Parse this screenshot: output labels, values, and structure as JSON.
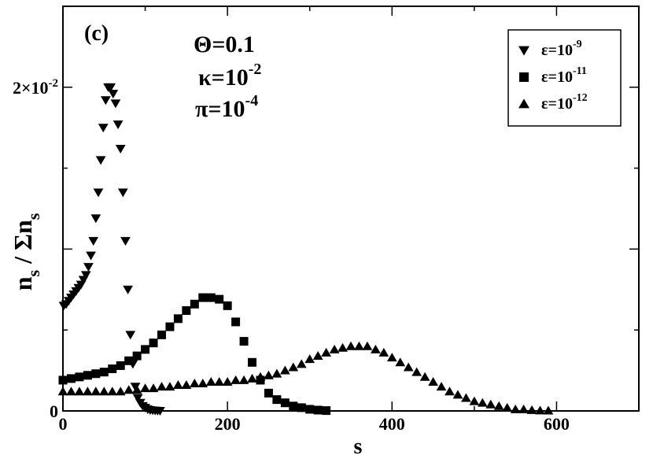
{
  "chart_data": {
    "type": "scatter",
    "panel_label": "(c)",
    "parameters": [
      {
        "symbol": "Θ",
        "base": "=0.1",
        "sub": "",
        "sup": ""
      },
      {
        "symbol": "κ",
        "base": "=10",
        "sub": "",
        "sup": "-2"
      },
      {
        "symbol": "π",
        "base": "=10",
        "sub": "",
        "sup": "-4"
      }
    ],
    "xlabel": "s",
    "ylabel": {
      "main": "n",
      "sub": "s",
      "mid": " / Σn",
      "sub2": "s"
    },
    "xlim": [
      0,
      700
    ],
    "ylim": [
      0,
      0.025
    ],
    "x_ticks": [
      {
        "value": 0,
        "label": "0"
      },
      {
        "value": 200,
        "label": "200"
      },
      {
        "value": 400,
        "label": "400"
      },
      {
        "value": 600,
        "label": "600"
      }
    ],
    "y_ticks": [
      {
        "value": 0,
        "label": "0"
      },
      {
        "value": 0.02,
        "label": "2×10",
        "sup": "-2"
      }
    ],
    "legend_position": "top-right",
    "series": [
      {
        "name": "ε=10",
        "name_sup": "-9",
        "marker": "triangle-down",
        "points": [
          [
            1,
            0.0065
          ],
          [
            4,
            0.0066
          ],
          [
            7,
            0.0068
          ],
          [
            10,
            0.007
          ],
          [
            13,
            0.0072
          ],
          [
            16,
            0.0074
          ],
          [
            19,
            0.0076
          ],
          [
            22,
            0.0078
          ],
          [
            25,
            0.0081
          ],
          [
            28,
            0.0084
          ],
          [
            31,
            0.0089
          ],
          [
            34,
            0.0096
          ],
          [
            37,
            0.0105
          ],
          [
            40,
            0.0119
          ],
          [
            43,
            0.0135
          ],
          [
            46,
            0.0155
          ],
          [
            49,
            0.0175
          ],
          [
            52,
            0.0192
          ],
          [
            55,
            0.02
          ],
          [
            58,
            0.02
          ],
          [
            61,
            0.0196
          ],
          [
            64,
            0.019
          ],
          [
            67,
            0.0177
          ],
          [
            70,
            0.0162
          ],
          [
            73,
            0.0135
          ],
          [
            76,
            0.0105
          ],
          [
            79,
            0.0075
          ],
          [
            82,
            0.0047
          ],
          [
            85,
            0.0029
          ],
          [
            88,
            0.0015
          ],
          [
            91,
            0.0008
          ],
          [
            94,
            0.0005
          ],
          [
            97,
            0.0003
          ],
          [
            100,
            0.0002
          ],
          [
            103,
            0.0001
          ],
          [
            106,
            5e-05
          ],
          [
            109,
            3e-05
          ],
          [
            112,
            2e-05
          ],
          [
            115,
            1e-05
          ],
          [
            118,
            0.0
          ]
        ]
      },
      {
        "name": "ε=10",
        "name_sup": "-11",
        "marker": "square",
        "points": [
          [
            0,
            0.0019
          ],
          [
            10,
            0.002
          ],
          [
            20,
            0.0021
          ],
          [
            30,
            0.0022
          ],
          [
            40,
            0.0023
          ],
          [
            50,
            0.0024
          ],
          [
            60,
            0.0026
          ],
          [
            70,
            0.0028
          ],
          [
            80,
            0.0031
          ],
          [
            90,
            0.0034
          ],
          [
            100,
            0.0038
          ],
          [
            110,
            0.0042
          ],
          [
            120,
            0.0047
          ],
          [
            130,
            0.0052
          ],
          [
            140,
            0.0057
          ],
          [
            150,
            0.0062
          ],
          [
            160,
            0.0066
          ],
          [
            170,
            0.007
          ],
          [
            180,
            0.007
          ],
          [
            190,
            0.0069
          ],
          [
            200,
            0.0065
          ],
          [
            210,
            0.0055
          ],
          [
            220,
            0.0043
          ],
          [
            230,
            0.003
          ],
          [
            240,
            0.0019
          ],
          [
            250,
            0.0011
          ],
          [
            260,
            0.0007
          ],
          [
            270,
            0.0005
          ],
          [
            280,
            0.0003
          ],
          [
            290,
            0.0002
          ],
          [
            300,
            0.0001
          ],
          [
            310,
            5e-05
          ],
          [
            320,
            2e-05
          ]
        ]
      },
      {
        "name": "ε=10",
        "name_sup": "-12",
        "marker": "triangle-up",
        "points": [
          [
            0,
            0.0012
          ],
          [
            10,
            0.0012
          ],
          [
            20,
            0.0012
          ],
          [
            30,
            0.0012
          ],
          [
            40,
            0.0012
          ],
          [
            50,
            0.0012
          ],
          [
            60,
            0.0012
          ],
          [
            70,
            0.0012
          ],
          [
            80,
            0.0013
          ],
          [
            90,
            0.0013
          ],
          [
            100,
            0.0014
          ],
          [
            110,
            0.0014
          ],
          [
            120,
            0.0015
          ],
          [
            130,
            0.0015
          ],
          [
            140,
            0.0016
          ],
          [
            150,
            0.0016
          ],
          [
            160,
            0.0017
          ],
          [
            170,
            0.0017
          ],
          [
            180,
            0.0018
          ],
          [
            190,
            0.0018
          ],
          [
            200,
            0.0018
          ],
          [
            210,
            0.0019
          ],
          [
            220,
            0.0019
          ],
          [
            230,
            0.002
          ],
          [
            240,
            0.0021
          ],
          [
            250,
            0.0022
          ],
          [
            260,
            0.0023
          ],
          [
            270,
            0.0025
          ],
          [
            280,
            0.0027
          ],
          [
            290,
            0.0029
          ],
          [
            300,
            0.0032
          ],
          [
            310,
            0.0034
          ],
          [
            320,
            0.0036
          ],
          [
            330,
            0.0038
          ],
          [
            340,
            0.0039
          ],
          [
            350,
            0.004
          ],
          [
            360,
            0.004
          ],
          [
            370,
            0.004
          ],
          [
            380,
            0.0038
          ],
          [
            390,
            0.0036
          ],
          [
            400,
            0.0033
          ],
          [
            410,
            0.003
          ],
          [
            420,
            0.0027
          ],
          [
            430,
            0.0024
          ],
          [
            440,
            0.0021
          ],
          [
            450,
            0.0018
          ],
          [
            460,
            0.0015
          ],
          [
            470,
            0.0012
          ],
          [
            480,
            0.001
          ],
          [
            490,
            0.0008
          ],
          [
            500,
            0.0006
          ],
          [
            510,
            0.0005
          ],
          [
            520,
            0.0004
          ],
          [
            530,
            0.0003
          ],
          [
            540,
            0.0002
          ],
          [
            550,
            0.0001
          ],
          [
            560,
            0.0001
          ],
          [
            570,
            5e-05
          ],
          [
            580,
            3e-05
          ],
          [
            590,
            2e-05
          ]
        ]
      }
    ]
  }
}
